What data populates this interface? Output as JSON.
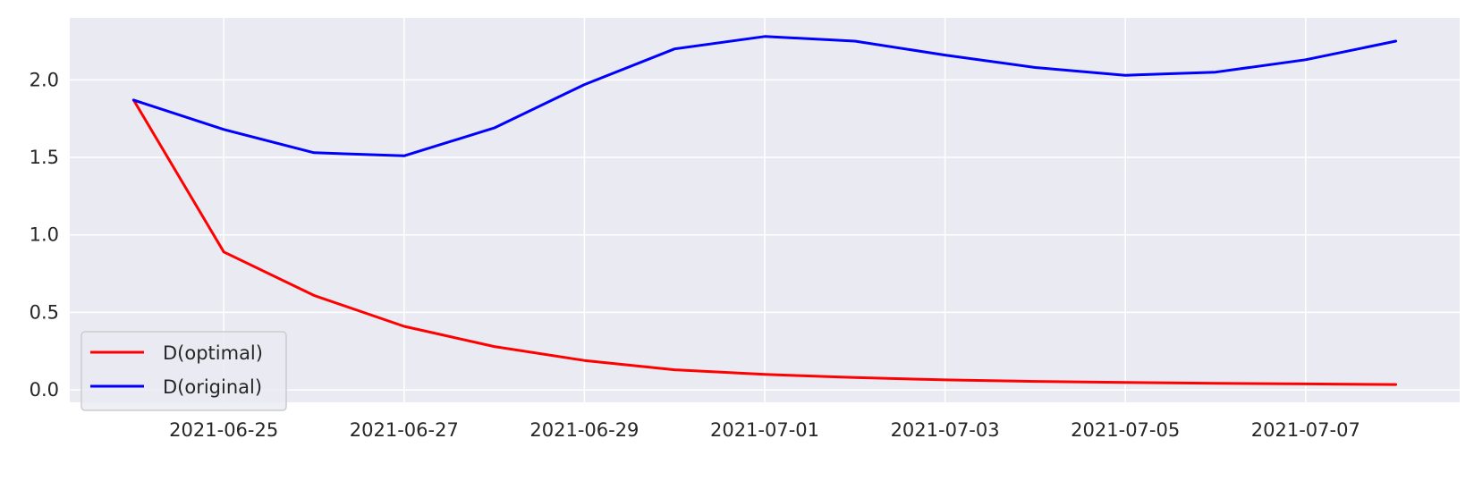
{
  "chart_data": {
    "type": "line",
    "title": "",
    "xlabel": "",
    "ylabel": "",
    "x": [
      "2021-06-24",
      "2021-06-25",
      "2021-06-26",
      "2021-06-27",
      "2021-06-28",
      "2021-06-29",
      "2021-06-30",
      "2021-07-01",
      "2021-07-02",
      "2021-07-03",
      "2021-07-04",
      "2021-07-05",
      "2021-07-06",
      "2021-07-07",
      "2021-07-08"
    ],
    "series": [
      {
        "name": "D(optimal)",
        "color": "#ff0000",
        "values": [
          1.87,
          0.89,
          0.61,
          0.41,
          0.28,
          0.19,
          0.13,
          0.1,
          0.08,
          0.065,
          0.055,
          0.048,
          0.043,
          0.039,
          0.035
        ]
      },
      {
        "name": "D(original)",
        "color": "#0000ff",
        "values": [
          1.87,
          1.68,
          1.53,
          1.51,
          1.69,
          1.97,
          2.2,
          2.28,
          2.25,
          2.16,
          2.08,
          2.03,
          2.05,
          2.13,
          2.25
        ]
      }
    ],
    "xlim": [
      "2021-06-23T07:00",
      "2021-07-08T17:00"
    ],
    "ylim": [
      -0.08,
      2.4
    ],
    "x_ticks": [
      "2021-06-25",
      "2021-06-27",
      "2021-06-29",
      "2021-07-01",
      "2021-07-03",
      "2021-07-05",
      "2021-07-07"
    ],
    "y_ticks": [
      0.0,
      0.5,
      1.0,
      1.5,
      2.0
    ],
    "y_tick_labels": [
      "0.0",
      "0.5",
      "1.0",
      "1.5",
      "2.0"
    ],
    "grid": true,
    "legend_position": "lower-left",
    "background_color": "#eaeaf2",
    "grid_color": "#ffffff"
  }
}
